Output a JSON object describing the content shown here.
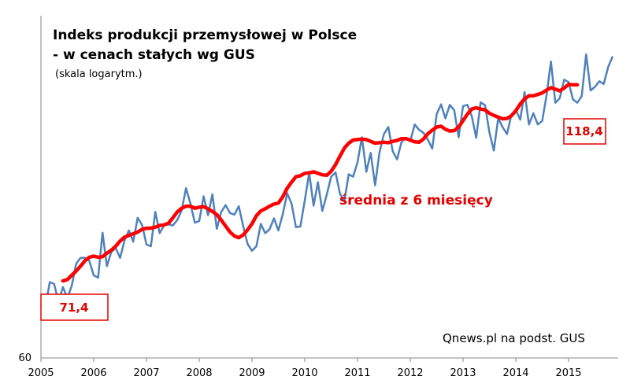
{
  "chart_data": {
    "type": "line",
    "title_line1": "Indeks produkcji przemysłowej w Polsce",
    "title_line2": "- w cenach stałych wg GUS",
    "subtitle": "(skala logarytm.)",
    "source": "Qnews.pl na podst. GUS",
    "y_scale": "log",
    "ylim": [
      60,
      125
    ],
    "y_tick_label": 60,
    "x_start": 2005.0,
    "x_end": 2015.8,
    "x_ticks": [
      "2005",
      "2006",
      "2007",
      "2008",
      "2009",
      "2010",
      "2011",
      "2012",
      "2013",
      "2014",
      "2015"
    ],
    "grid": false,
    "colors": {
      "monthly": "#4f81bd",
      "average": "#ff0000",
      "annotation": "#e50000"
    },
    "series": [
      {
        "key": "monthly",
        "x_start": 2005.0,
        "step": 0.08333,
        "values": [
          67.5,
          67.3,
          71.2,
          70.9,
          68.1,
          70.4,
          68.7,
          70.6,
          74.2,
          75.2,
          75.2,
          74.7,
          72.3,
          71.9,
          79.6,
          73.8,
          76.2,
          76.9,
          75.2,
          78.2,
          80.0,
          78.0,
          82.3,
          81.0,
          77.5,
          77.2,
          83.4,
          79.5,
          80.9,
          81.1,
          80.9,
          81.9,
          83.7,
          88.0,
          85.0,
          81.4,
          81.7,
          86.4,
          82.8,
          86.8,
          80.3,
          83.4,
          84.7,
          83.2,
          82.9,
          84.5,
          80.8,
          77.6,
          76.4,
          77.2,
          81.2,
          79.5,
          80.2,
          82.2,
          80.0,
          83.0,
          87.0,
          85.0,
          80.6,
          80.7,
          85.6,
          91.1,
          84.6,
          89.2,
          83.6,
          86.7,
          90.3,
          91.2,
          86.9,
          85.4,
          90.8,
          90.3,
          93.3,
          98.7,
          91.3,
          95.3,
          88.6,
          95.4,
          99.4,
          101.0,
          95.7,
          93.9,
          97.6,
          98.6,
          97.8,
          101.6,
          100.4,
          99.7,
          98.2,
          96.2,
          104.0,
          106.3,
          103.0,
          106.2,
          104.9,
          98.7,
          105.9,
          106.2,
          103.5,
          98.6,
          106.8,
          106.1,
          99.8,
          95.8,
          103.0,
          101.0,
          99.4,
          103.8,
          105.0,
          102.7,
          109.3,
          101.6,
          104.2,
          101.6,
          102.4,
          108.6,
          117.1,
          106.7,
          107.8,
          112.4,
          111.8,
          107.5,
          106.7,
          108.3,
          119.0,
          109.7,
          110.6,
          112.0,
          111.3,
          115.6,
          118.4
        ]
      },
      {
        "key": "average",
        "x_start": 2005.4167,
        "step": 0.08333,
        "values": [
          71.4,
          71.6,
          72.3,
          73.0,
          73.8,
          74.7,
          75.3,
          75.5,
          75.3,
          75.4,
          76.0,
          76.5,
          77.2,
          78.1,
          78.8,
          79.1,
          79.4,
          79.7,
          80.2,
          80.4,
          80.4,
          80.6,
          80.9,
          81.0,
          81.3,
          82.3,
          83.4,
          84.1,
          84.5,
          84.5,
          84.1,
          84.3,
          84.4,
          84.0,
          83.5,
          82.9,
          81.9,
          80.8,
          79.7,
          79.0,
          78.7,
          79.2,
          80.1,
          81.2,
          82.7,
          83.6,
          84.0,
          84.5,
          84.9,
          85.1,
          86.3,
          88.0,
          89.2,
          90.3,
          90.5,
          91.0,
          91.1,
          91.3,
          91.0,
          90.7,
          90.6,
          91.4,
          92.8,
          94.6,
          96.3,
          97.4,
          98.1,
          98.2,
          98.3,
          98.2,
          97.8,
          97.4,
          97.5,
          97.6,
          97.5,
          97.8,
          98.0,
          98.4,
          98.4,
          98.1,
          97.7,
          97.6,
          98.3,
          99.5,
          100.3,
          101.0,
          101.2,
          100.5,
          100.1,
          100.2,
          101.0,
          102.5,
          104.0,
          105.2,
          105.5,
          105.2,
          105.0,
          104.2,
          103.7,
          103.3,
          102.9,
          103.0,
          103.6,
          104.8,
          106.4,
          107.6,
          108.4,
          108.4,
          108.7,
          109.1,
          109.8,
          110.4,
          110.0,
          109.6,
          110.3,
          111.2,
          111.1,
          111.1
        ]
      }
    ],
    "annotations": {
      "start_value": "71,4",
      "end_value": "118,4",
      "average_label": "średnia z 6 miesięcy"
    }
  }
}
